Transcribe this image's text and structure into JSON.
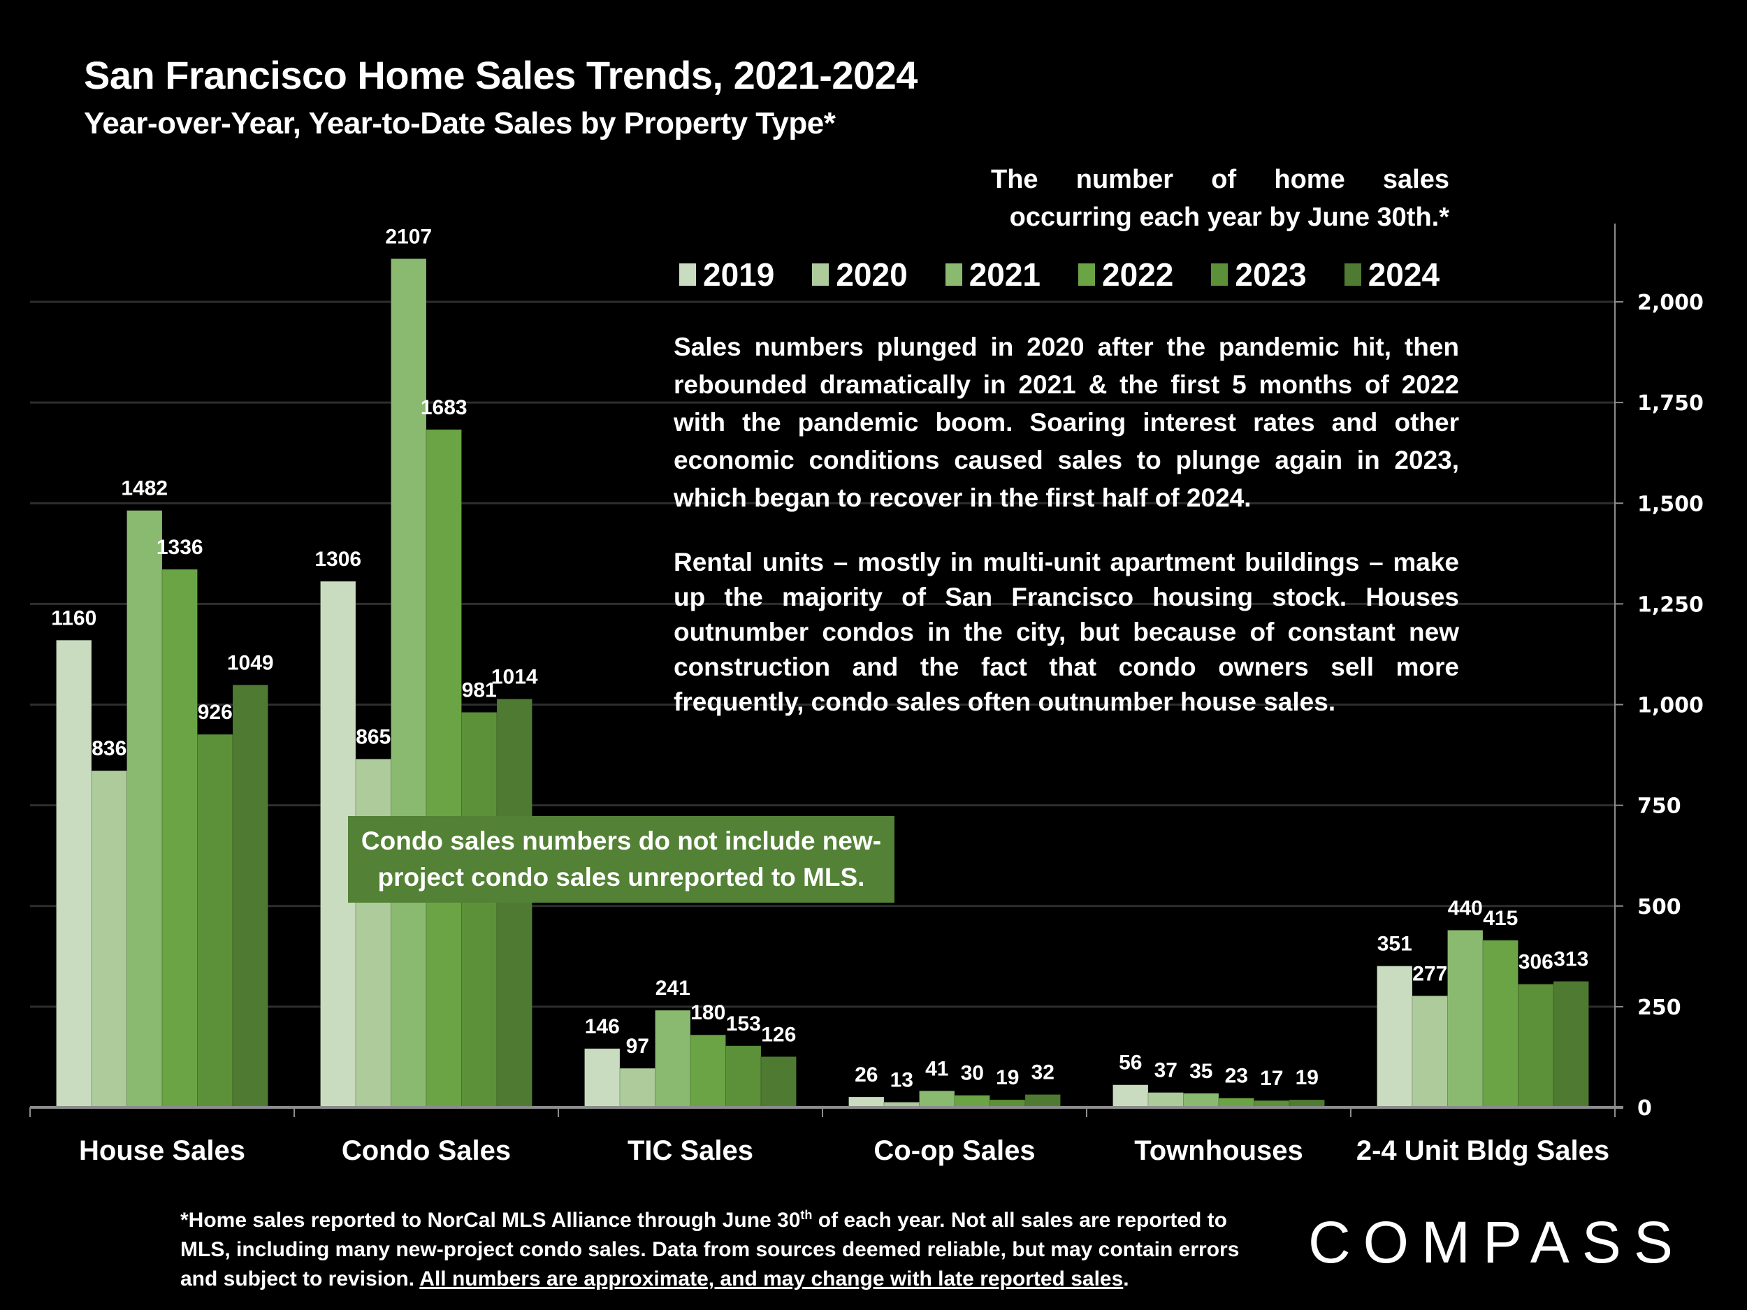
{
  "header": {
    "title": "San Francisco Home Sales Trends, 2021-2024",
    "subtitle": "Year-over-Year, Year-to-Date Sales by Property Type*"
  },
  "note_top": "The number of home sales occurring each year by June 30th.*",
  "commentary": {
    "paragraph_1": "Sales numbers plunged in 2020 after the pandemic hit, then rebounded dramatically in 2021 & the first 5 months of 2022 with the pandemic boom. Soaring interest rates and other economic conditions caused sales to plunge again in 2023, which began to recover in the first half of 2024.",
    "paragraph_2": "Rental units – mostly in multi-unit apartment buildings – make up the majority of San Francisco housing stock. Houses outnumber condos in the city, but because of constant new construction and the fact that condo owners sell more frequently, condo sales often outnumber house sales."
  },
  "callout": "Condo sales numbers do not include new-project condo sales unreported to MLS.",
  "footnote": {
    "part1": "*Home sales reported to NorCal MLS Alliance through June 30",
    "sup": "th",
    "part2": " of each year. Not all sales are reported to MLS, including many new-project condo sales. Data from sources deemed reliable, but may contain errors and subject to revision. ",
    "underlined": "All numbers are approximate, and may change with late reported sales",
    "end": "."
  },
  "logo": "COMPASS",
  "colors": {
    "2019": "#c9dcc0",
    "2020": "#aecb9c",
    "2021": "#8aba6f",
    "2022": "#6aa444",
    "2023": "#5c913a",
    "2024": "#4e7b31",
    "callout_bg": "#538135",
    "gridline": "#2e2e2e",
    "axis": "#8c8c8c"
  },
  "chart_data": {
    "type": "bar",
    "title": "San Francisco Home Sales Trends, 2021-2024",
    "subtitle": "Year-over-Year, Year-to-Date Sales by Property Type*",
    "xlabel": "",
    "ylabel": "",
    "ylim": [
      0,
      2000
    ],
    "y_axis_side": "right",
    "yticks": [
      0,
      250,
      500,
      750,
      1000,
      1250,
      1500,
      1750,
      2000
    ],
    "ytick_labels": [
      "0",
      "250",
      "500",
      "750",
      "1,000",
      "1,250",
      "1,500",
      "1,750",
      "2,000"
    ],
    "grid": true,
    "legend_position": "top-right",
    "categories": [
      "House Sales",
      "Condo Sales",
      "TIC Sales",
      "Co-op Sales",
      "Townhouses",
      "2-4 Unit Bldg Sales"
    ],
    "series": [
      {
        "name": "2019",
        "values": [
          1160,
          1306,
          146,
          26,
          56,
          351
        ]
      },
      {
        "name": "2020",
        "values": [
          836,
          865,
          97,
          13,
          37,
          277
        ]
      },
      {
        "name": "2021",
        "values": [
          1482,
          2107,
          241,
          41,
          35,
          440
        ]
      },
      {
        "name": "2022",
        "values": [
          1336,
          1683,
          180,
          30,
          23,
          415
        ]
      },
      {
        "name": "2023",
        "values": [
          926,
          981,
          153,
          19,
          17,
          306
        ]
      },
      {
        "name": "2024",
        "values": [
          1049,
          1014,
          126,
          32,
          19,
          313
        ]
      }
    ]
  }
}
